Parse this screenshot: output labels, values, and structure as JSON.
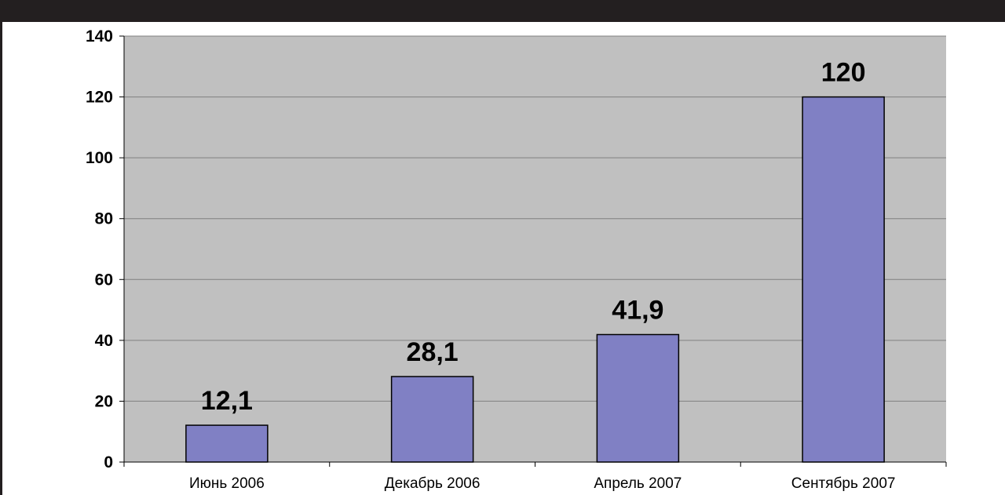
{
  "colors": {
    "frame": "#231f20",
    "plot_background": "#c0c0c0",
    "bar_fill": "#8080c4",
    "bar_stroke": "#000000",
    "gridline": "#808080"
  },
  "chart_data": {
    "type": "bar",
    "categories": [
      "Июнь 2006",
      "Декабрь 2006",
      "Апрель 2007",
      "Сентябрь 2007"
    ],
    "values": [
      12.1,
      28.1,
      41.9,
      120
    ],
    "data_labels": [
      "12,1",
      "28,1",
      "41,9",
      "120"
    ],
    "ylim": [
      0,
      140
    ],
    "y_ticks": [
      0,
      20,
      40,
      60,
      80,
      100,
      120,
      140
    ],
    "grid": true,
    "legend": "none"
  }
}
